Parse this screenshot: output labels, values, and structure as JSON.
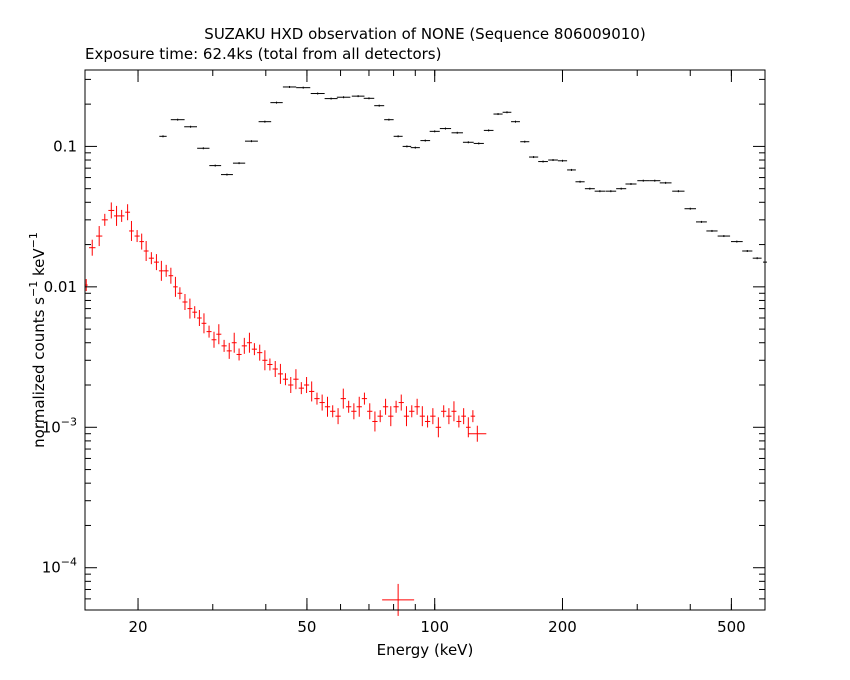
{
  "chart_data": {
    "type": "scatter",
    "title": "SUZAKU HXD observation of NONE (Sequence 806009010)",
    "subtitle": "Exposure time: 62.4ks (total from all detectors)",
    "xlabel": "Energy (keV)",
    "ylabel": {
      "text": "normalized counts s",
      "sup1": "−1",
      "mid": " keV",
      "sup2": "−1"
    },
    "x_scale": "log",
    "y_scale": "log",
    "xlim": [
      15,
      600
    ],
    "ylim": [
      5e-05,
      0.35
    ],
    "x_ticks": [
      {
        "value": 20,
        "label": "20"
      },
      {
        "value": 50,
        "label": "50"
      },
      {
        "value": 100,
        "label": "100"
      },
      {
        "value": 200,
        "label": "200"
      },
      {
        "value": 500,
        "label": "500"
      }
    ],
    "y_ticks": [
      {
        "value": 0.0001,
        "base": "10",
        "exp": "−4",
        "label": ""
      },
      {
        "value": 0.001,
        "base": "10",
        "exp": "−3",
        "label": ""
      },
      {
        "value": 0.01,
        "base": "",
        "exp": "",
        "label": "0.01"
      },
      {
        "value": 0.1,
        "base": "",
        "exp": "",
        "label": "0.1"
      }
    ],
    "grid": false,
    "legend": "none",
    "series": [
      {
        "color": "#000000",
        "points": [
          [
            22.9,
            0.118
          ],
          [
            24.8,
            0.155
          ],
          [
            26.6,
            0.138
          ],
          [
            28.5,
            0.097
          ],
          [
            30.4,
            0.073
          ],
          [
            32.4,
            0.063
          ],
          [
            34.6,
            0.076
          ],
          [
            37.0,
            0.109
          ],
          [
            39.8,
            0.15
          ],
          [
            42.4,
            0.205
          ],
          [
            45.5,
            0.265
          ],
          [
            49.0,
            0.262
          ],
          [
            53.0,
            0.238
          ],
          [
            57.0,
            0.219
          ],
          [
            61.0,
            0.224
          ],
          [
            66.0,
            0.228
          ],
          [
            70.0,
            0.22
          ],
          [
            74.0,
            0.195
          ],
          [
            78.0,
            0.155
          ],
          [
            82.0,
            0.118
          ],
          [
            86.0,
            0.1
          ],
          [
            90.0,
            0.098
          ],
          [
            95.0,
            0.11
          ],
          [
            100.0,
            0.128
          ],
          [
            106.0,
            0.134
          ],
          [
            113.0,
            0.125
          ],
          [
            120.0,
            0.107
          ],
          [
            127.0,
            0.105
          ],
          [
            134.0,
            0.13
          ],
          [
            141.0,
            0.17
          ],
          [
            148.0,
            0.175
          ],
          [
            155.0,
            0.15
          ],
          [
            163.0,
            0.108
          ],
          [
            171.0,
            0.084
          ],
          [
            180.0,
            0.078
          ],
          [
            190.0,
            0.08
          ],
          [
            200.0,
            0.079
          ],
          [
            210.0,
            0.068
          ],
          [
            220.0,
            0.056
          ],
          [
            232.0,
            0.05
          ],
          [
            245.0,
            0.048
          ],
          [
            260.0,
            0.048
          ],
          [
            275.0,
            0.05
          ],
          [
            290.0,
            0.054
          ],
          [
            310.0,
            0.057
          ],
          [
            330.0,
            0.057
          ],
          [
            350.0,
            0.055
          ],
          [
            375.0,
            0.048
          ],
          [
            400.0,
            0.036
          ],
          [
            425.0,
            0.029
          ],
          [
            450.0,
            0.025
          ],
          [
            480.0,
            0.023
          ],
          [
            515.0,
            0.021
          ],
          [
            545.0,
            0.018
          ],
          [
            575.0,
            0.016
          ],
          [
            600.0,
            0.015
          ]
        ]
      },
      {
        "color": "#ff0000",
        "points": [
          [
            15.1,
            0.0103
          ],
          [
            15.6,
            0.019
          ],
          [
            16.2,
            0.023
          ],
          [
            16.7,
            0.03
          ],
          [
            17.3,
            0.035
          ],
          [
            17.8,
            0.032
          ],
          [
            18.3,
            0.032
          ],
          [
            18.9,
            0.034
          ],
          [
            19.3,
            0.025
          ],
          [
            19.9,
            0.023
          ],
          [
            20.4,
            0.021
          ],
          [
            20.9,
            0.018
          ],
          [
            21.5,
            0.016
          ],
          [
            22.1,
            0.015
          ],
          [
            22.7,
            0.013
          ],
          [
            23.3,
            0.013
          ],
          [
            23.9,
            0.012
          ],
          [
            24.5,
            0.01
          ],
          [
            25.1,
            0.009
          ],
          [
            25.8,
            0.0078
          ],
          [
            26.5,
            0.007
          ],
          [
            27.2,
            0.0066
          ],
          [
            27.9,
            0.006
          ],
          [
            28.6,
            0.0055
          ],
          [
            29.4,
            0.0048
          ],
          [
            30.2,
            0.0042
          ],
          [
            31.0,
            0.0046
          ],
          [
            31.9,
            0.0038
          ],
          [
            32.8,
            0.0035
          ],
          [
            33.7,
            0.004
          ],
          [
            34.6,
            0.0033
          ],
          [
            35.6,
            0.0038
          ],
          [
            36.6,
            0.004
          ],
          [
            37.6,
            0.0036
          ],
          [
            38.7,
            0.0034
          ],
          [
            39.8,
            0.003
          ],
          [
            40.9,
            0.0028
          ],
          [
            42.1,
            0.0026
          ],
          [
            43.3,
            0.0024
          ],
          [
            44.5,
            0.0022
          ],
          [
            45.8,
            0.002
          ],
          [
            47.1,
            0.0022
          ],
          [
            48.5,
            0.0019
          ],
          [
            49.9,
            0.002
          ],
          [
            51.3,
            0.0018
          ],
          [
            52.8,
            0.0016
          ],
          [
            54.3,
            0.0015
          ],
          [
            55.9,
            0.0014
          ],
          [
            57.5,
            0.0013
          ],
          [
            59.2,
            0.0012
          ],
          [
            60.9,
            0.0016
          ],
          [
            62.7,
            0.0014
          ],
          [
            64.5,
            0.0013
          ],
          [
            66.4,
            0.0014
          ],
          [
            68.3,
            0.0016
          ],
          [
            70.3,
            0.0013
          ],
          [
            72.3,
            0.0011
          ],
          [
            74.4,
            0.0012
          ],
          [
            76.6,
            0.0014
          ],
          [
            78.8,
            0.0012
          ],
          [
            81.1,
            0.0014
          ],
          [
            83.4,
            0.0015
          ],
          [
            85.8,
            0.0012
          ],
          [
            88.3,
            0.0013
          ],
          [
            90.9,
            0.0014
          ],
          [
            93.5,
            0.0012
          ],
          [
            96.2,
            0.0011
          ],
          [
            99.0,
            0.0012
          ],
          [
            102.0,
            0.001
          ],
          [
            105.0,
            0.0013
          ],
          [
            108.0,
            0.0012
          ],
          [
            111.0,
            0.0013
          ],
          [
            114.0,
            0.0011
          ],
          [
            117.0,
            0.0012
          ],
          [
            120.0,
            0.001
          ],
          [
            123.0,
            0.0012
          ],
          [
            126.0,
            0.0009
          ],
          [
            82.0,
            5.9e-05
          ]
        ]
      }
    ]
  }
}
